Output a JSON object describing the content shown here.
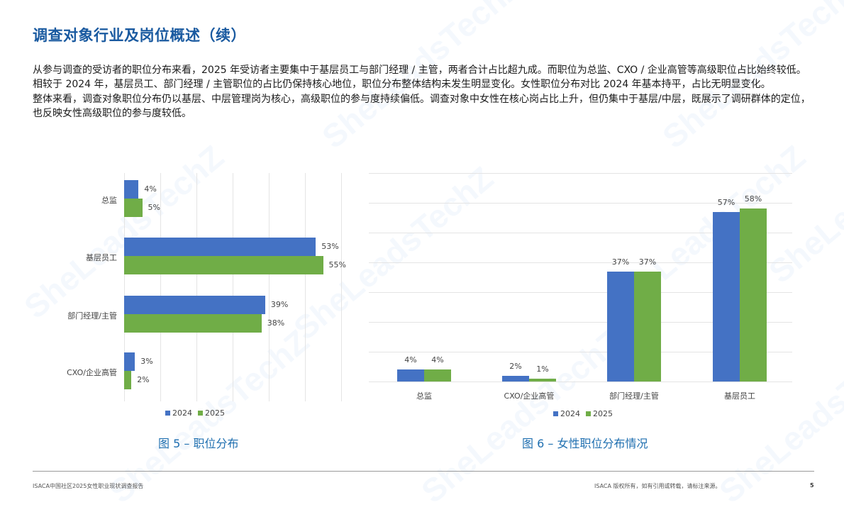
{
  "page": {
    "title": "调查对象行业及岗位概述（续）",
    "paragraphs": [
      "从参与调查的受访者的职位分布来看，2025 年受访者主要集中于基层员工与部门经理 / 主管，两者合计占比超九成。而职位为总监、CXO / 企业高管等高级职位占比始终较低。相较于 2024 年，基层员工、部门经理 / 主管职位的占比仍保持核心地位，职位分布整体结构未发生明显变化。女性职位分布对比 2024 年基本持平，占比无明显变化。",
      "整体来看，调查对象职位分布仍以基层、中层管理岗为核心，高级职位的参与度持续偏低。调查对象中女性在核心岗占比上升，但仍集中于基层/中层，既展示了调研群体的定位，也反映女性高级职位的参与度较低。"
    ],
    "watermark": "SheLeadsTechZ · ISACA · ENGAGE. EMPOWER. ELEVATE."
  },
  "colors": {
    "series_2024": "#4472c4",
    "series_2025": "#70ad47",
    "title": "#1a5aa0",
    "caption": "#1f6fb0"
  },
  "chart_data": [
    {
      "type": "bar",
      "orientation": "horizontal",
      "title": "图 5 – 职位分布",
      "categories": [
        "总监",
        "基层员工",
        "部门经理/主管",
        "CXO/企业高管"
      ],
      "series": [
        {
          "name": "2024",
          "values": [
            4,
            53,
            39,
            3
          ],
          "labels": [
            "4%",
            "53%",
            "39%",
            "3%"
          ]
        },
        {
          "name": "2025",
          "values": [
            5,
            55,
            38,
            2
          ],
          "labels": [
            "5%",
            "55%",
            "38%",
            "2%"
          ]
        }
      ],
      "xlabel": "",
      "ylabel": "",
      "xlim": [
        0,
        60
      ],
      "grid": true,
      "legend_position": "bottom"
    },
    {
      "type": "bar",
      "orientation": "vertical",
      "title": "图 6 – 女性职位分布情况",
      "categories": [
        "总监",
        "CXO/企业高管",
        "部门经理/主管",
        "基层员工"
      ],
      "series": [
        {
          "name": "2024",
          "values": [
            4,
            2,
            37,
            57
          ],
          "labels": [
            "4%",
            "2%",
            "37%",
            "57%"
          ]
        },
        {
          "name": "2025",
          "values": [
            4,
            1,
            37,
            58
          ],
          "labels": [
            "4%",
            "1%",
            "37%",
            "58%"
          ]
        }
      ],
      "xlabel": "",
      "ylabel": "",
      "ylim": [
        0,
        70
      ],
      "grid": true,
      "legend_position": "bottom"
    }
  ],
  "legend": {
    "labels": [
      "2024",
      "2025"
    ]
  },
  "footer": {
    "left": "ISACA中国社区2025女性职业现状调查报告",
    "right": "ISACA 版权所有，如有引用或转载，请标注来源。",
    "page_number": "5"
  }
}
